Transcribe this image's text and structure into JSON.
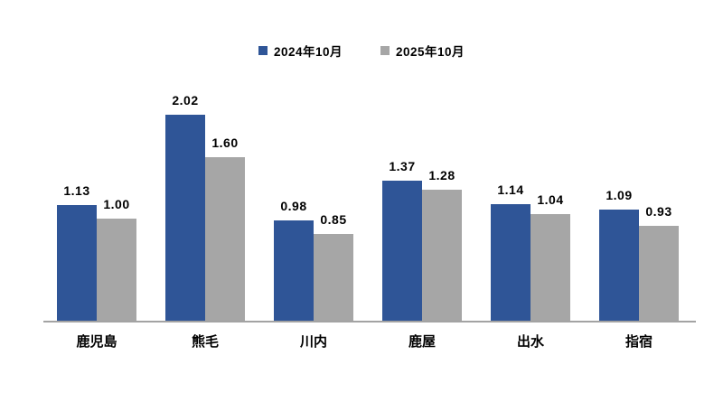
{
  "chart_data": {
    "type": "bar",
    "title": "",
    "xlabel": "",
    "ylabel": "",
    "categories": [
      "鹿児島",
      "熊毛",
      "川内",
      "鹿屋",
      "出水",
      "指宿"
    ],
    "series": [
      {
        "name": "2024年10月",
        "color": "#2F5597",
        "values": [
          1.13,
          2.02,
          0.98,
          1.37,
          1.14,
          1.09
        ]
      },
      {
        "name": "2025年10月",
        "color": "#A6A6A6",
        "values": [
          1.0,
          1.6,
          0.85,
          1.28,
          1.04,
          0.93
        ]
      }
    ],
    "data_labels_shown": true,
    "data_label_decimals": 2,
    "ylim": [
      0,
      2.2
    ],
    "grid": false,
    "y_axis_shown": false,
    "legend_position": "top",
    "axis_line_color": "#a3a3a3",
    "background_color": "#ffffff",
    "text_color": "#000000"
  }
}
